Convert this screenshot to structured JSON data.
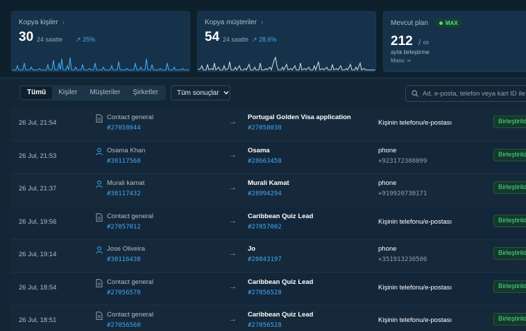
{
  "stats": {
    "contacts": {
      "title": "Kopya kişiler",
      "value": "30",
      "period": "24 saatte",
      "trend": "↗ 25%"
    },
    "customers": {
      "title": "Kopya müşteriler",
      "value": "54",
      "period": "24 saatte",
      "trend": "↗ 28.6%"
    },
    "plan": {
      "title": "Mevcut plan",
      "badge": "MAX",
      "value": "212",
      "unit": "/ ∞",
      "sub1": "aylık birleştirme",
      "sub2": "Mass: ∞"
    }
  },
  "filters": {
    "tabs": [
      {
        "label": "Tümü"
      },
      {
        "label": "Kişiler"
      },
      {
        "label": "Müşteriler"
      },
      {
        "label": "Şirketler"
      }
    ],
    "select_value": "Tüm sonuçlar",
    "search_placeholder": "Ad, e-posta, telefon veya kart ID ile ara"
  },
  "rows": [
    {
      "time": "26 Jul, 21:54",
      "src_type": "doc",
      "src_name": "Contact general",
      "src_id": "#27058044",
      "dst_name": "Portugal Golden Visa application",
      "dst_id": "#27058038",
      "field": "Kişinin telefonu/e-postası",
      "field_value": "",
      "status": "Birleştirildi"
    },
    {
      "time": "26 Jul, 21:53",
      "src_type": "person",
      "src_name": "Osama Khan",
      "src_id": "#30117568",
      "dst_name": "Osama",
      "dst_id": "#28663458",
      "field": "phone",
      "field_value": "+923172308099",
      "status": "Birleştirildi"
    },
    {
      "time": "26 Jul, 21:37",
      "src_type": "person",
      "src_name": "Murali kamat",
      "src_id": "#30117432",
      "dst_name": "Murali Kamat",
      "dst_id": "#28994294",
      "field": "phone",
      "field_value": "+919920730171",
      "status": "Birleştirildi"
    },
    {
      "time": "26 Jul, 19:56",
      "src_type": "doc",
      "src_name": "Contact general",
      "src_id": "#27057012",
      "dst_name": "Caribbean Quiz Lead",
      "dst_id": "#27057002",
      "field": "Kişinin telefonu/e-postası",
      "field_value": "",
      "status": "Birleştirildi"
    },
    {
      "time": "26 Jul, 19:14",
      "src_type": "person",
      "src_name": "Jose Oliveira",
      "src_id": "#30116438",
      "dst_name": "Jo",
      "dst_id": "#20843197",
      "field": "phone",
      "field_value": "+351913230506",
      "status": "Birleştirildi"
    },
    {
      "time": "26 Jul, 18:54",
      "src_type": "doc",
      "src_name": "Contact general",
      "src_id": "#27056570",
      "dst_name": "Caribbean Quiz Lead",
      "dst_id": "#27056528",
      "field": "Kişinin telefonu/e-postası",
      "field_value": "",
      "status": "Birleştirildi"
    },
    {
      "time": "26 Jul, 18:51",
      "src_type": "doc",
      "src_name": "Contact general",
      "src_id": "#27056560",
      "dst_name": "Caribbean Quiz Lead",
      "dst_id": "#27056528",
      "field": "Kişinin telefonu/e-postası",
      "field_value": "",
      "status": "Birleştirildi"
    }
  ],
  "colors": {
    "accent": "#3fa9f5",
    "success": "#4ee08a"
  }
}
